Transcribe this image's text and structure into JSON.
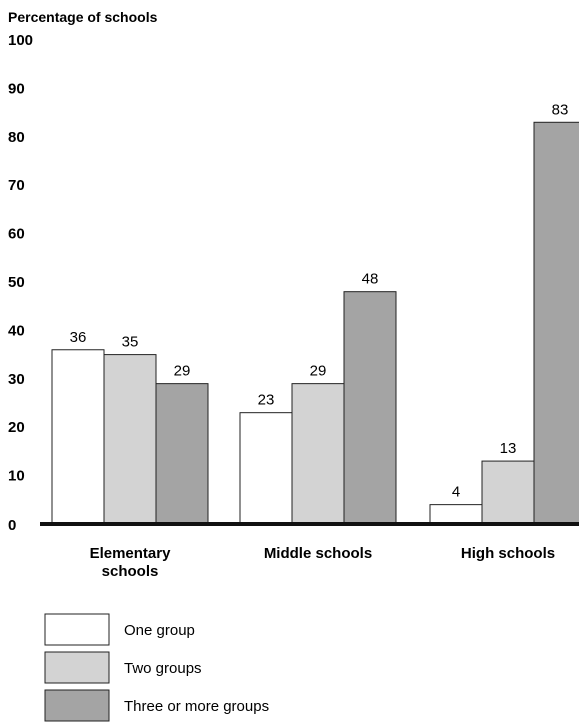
{
  "chart_data": {
    "type": "bar",
    "ylabel": "Percentage of schools",
    "ylim": [
      0,
      100
    ],
    "yticks": [
      0,
      10,
      20,
      30,
      40,
      50,
      60,
      70,
      80,
      90,
      100
    ],
    "categories": [
      [
        "Elementary",
        "schools"
      ],
      [
        "Middle schools"
      ],
      [
        "High schools"
      ]
    ],
    "series": [
      {
        "name": "One group",
        "values": [
          36,
          23,
          4
        ],
        "color": "#ffffff"
      },
      {
        "name": "Two groups",
        "values": [
          35,
          29,
          13
        ],
        "color": "#d3d3d3"
      },
      {
        "name": "Three or more groups",
        "values": [
          29,
          48,
          83
        ],
        "color": "#a4a4a4"
      }
    ],
    "grid": false,
    "legend_position": "bottom-left"
  }
}
